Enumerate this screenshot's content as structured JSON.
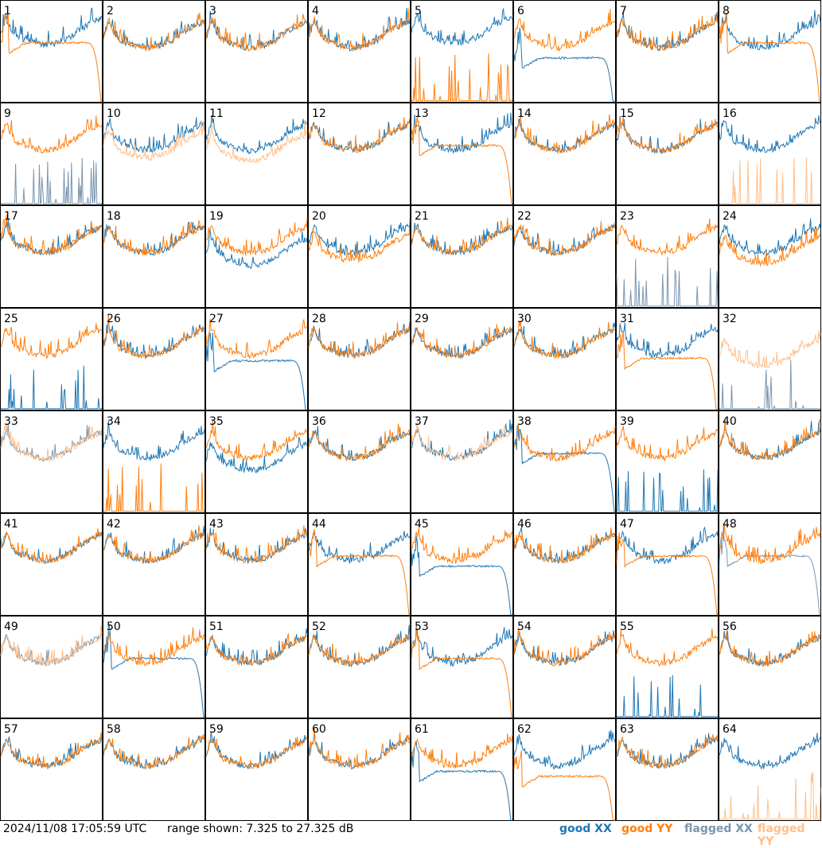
{
  "chart_data": {
    "type": "line",
    "timestamp": "2024/11/08 17:05:59 UTC",
    "range_text": "range shown: 7.325 to 27.325 dB",
    "ylim": [
      7.325,
      27.325
    ],
    "ylabel_unit": "dB",
    "grid": {
      "rows": 8,
      "cols": 8
    },
    "colors": {
      "good_xx": "#1f77b4",
      "good_yy": "#ff7f0e",
      "flagged_xx": "#7a96b0",
      "flagged_yy": "#ffbf8a"
    },
    "legend": [
      {
        "key": "good_xx",
        "label": "good XX"
      },
      {
        "key": "good_yy",
        "label": "good YY"
      },
      {
        "key": "flagged_xx",
        "label": "flagged XX"
      },
      {
        "key": "flagged_yy",
        "label": "flagged YY"
      }
    ],
    "base_profile_db": [
      20.0,
      23.5,
      21.0,
      19.6,
      19.2,
      18.8,
      18.4,
      18.2,
      18.0,
      18.1,
      18.3,
      18.6,
      19.0,
      19.5,
      20.3,
      21.2,
      21.8,
      22.3,
      22.8,
      23.3
    ],
    "panels": [
      {
        "label": "1",
        "xx": "good",
        "yy": "good",
        "xx_shape": "normal",
        "yy_shape": "rolloff",
        "xx_offset": 0.6,
        "yy_offset": 0
      },
      {
        "label": "2",
        "xx": "good",
        "yy": "good",
        "xx_shape": "normal",
        "yy_shape": "normal"
      },
      {
        "label": "3",
        "xx": "good",
        "yy": "good",
        "xx_shape": "normal",
        "yy_shape": "normal"
      },
      {
        "label": "4",
        "xx": "good",
        "yy": "good",
        "xx_shape": "normal",
        "yy_shape": "normal"
      },
      {
        "label": "5",
        "xx": "good",
        "yy": "good",
        "xx_shape": "normal",
        "yy_shape": "spikes",
        "xx_offset": 1.0
      },
      {
        "label": "6",
        "xx": "good",
        "yy": "good",
        "xx_shape": "rolloff",
        "yy_shape": "normal",
        "xx_offset": -3.0
      },
      {
        "label": "7",
        "xx": "good",
        "yy": "good",
        "xx_shape": "normal",
        "yy_shape": "normal"
      },
      {
        "label": "8",
        "xx": "good",
        "yy": "good",
        "xx_shape": "normal",
        "yy_shape": "rolloff"
      },
      {
        "label": "9",
        "xx": "flagged",
        "yy": "good",
        "xx_shape": "spikes",
        "yy_shape": "normal"
      },
      {
        "label": "10",
        "xx": "good",
        "yy": "flagged",
        "xx_shape": "normal",
        "yy_shape": "normal",
        "yy_offset": -1.5
      },
      {
        "label": "11",
        "xx": "good",
        "yy": "flagged",
        "xx_shape": "normal",
        "yy_shape": "normal",
        "yy_offset": -2.0
      },
      {
        "label": "12",
        "xx": "good",
        "yy": "good",
        "xx_shape": "normal",
        "yy_shape": "normal"
      },
      {
        "label": "13",
        "xx": "good",
        "yy": "good",
        "xx_shape": "normal",
        "yy_shape": "rolloff"
      },
      {
        "label": "14",
        "xx": "good",
        "yy": "good",
        "xx_shape": "normal",
        "yy_shape": "normal"
      },
      {
        "label": "15",
        "xx": "good",
        "yy": "good",
        "xx_shape": "normal",
        "yy_shape": "normal"
      },
      {
        "label": "16",
        "xx": "good",
        "yy": "flagged",
        "xx_shape": "normal",
        "yy_shape": "spikes"
      },
      {
        "label": "17",
        "xx": "good",
        "yy": "good",
        "xx_shape": "normal",
        "yy_shape": "normal"
      },
      {
        "label": "18",
        "xx": "good",
        "yy": "good",
        "xx_shape": "normal",
        "yy_shape": "normal"
      },
      {
        "label": "19",
        "xx": "good",
        "yy": "good",
        "xx_shape": "normal",
        "yy_shape": "normal",
        "xx_offset": -2.5
      },
      {
        "label": "20",
        "xx": "good",
        "yy": "good",
        "xx_shape": "normal",
        "yy_shape": "normal",
        "yy_offset": -1.5
      },
      {
        "label": "21",
        "xx": "good",
        "yy": "good",
        "xx_shape": "normal",
        "yy_shape": "normal"
      },
      {
        "label": "22",
        "xx": "good",
        "yy": "good",
        "xx_shape": "normal",
        "yy_shape": "normal"
      },
      {
        "label": "23",
        "xx": "flagged",
        "yy": "good",
        "xx_shape": "spikes",
        "yy_shape": "normal"
      },
      {
        "label": "24",
        "xx": "good",
        "yy": "good",
        "xx_shape": "normal",
        "yy_shape": "normal",
        "yy_offset": -2.0
      },
      {
        "label": "25",
        "xx": "good",
        "yy": "good",
        "xx_shape": "spikes",
        "yy_shape": "normal"
      },
      {
        "label": "26",
        "xx": "good",
        "yy": "good",
        "xx_shape": "normal",
        "yy_shape": "normal"
      },
      {
        "label": "27",
        "xx": "good",
        "yy": "good",
        "xx_shape": "rolloff",
        "yy_shape": "normal",
        "xx_offset": -2.0
      },
      {
        "label": "28",
        "xx": "good",
        "yy": "good",
        "xx_shape": "normal",
        "yy_shape": "normal"
      },
      {
        "label": "29",
        "xx": "good",
        "yy": "good",
        "xx_shape": "normal",
        "yy_shape": "normal"
      },
      {
        "label": "30",
        "xx": "good",
        "yy": "good",
        "xx_shape": "normal",
        "yy_shape": "normal"
      },
      {
        "label": "31",
        "xx": "good",
        "yy": "good",
        "xx_shape": "normal",
        "yy_shape": "rolloff",
        "yy_offset": -1.5
      },
      {
        "label": "32",
        "xx": "flagged",
        "yy": "flagged",
        "xx_shape": "spikes",
        "yy_shape": "normal",
        "yy_offset": -2.0
      },
      {
        "label": "33",
        "xx": "flagged",
        "yy": "flagged",
        "xx_shape": "normal",
        "yy_shape": "normal"
      },
      {
        "label": "34",
        "xx": "good",
        "yy": "good",
        "xx_shape": "normal",
        "yy_shape": "spikes"
      },
      {
        "label": "35",
        "xx": "good",
        "yy": "good",
        "xx_shape": "normal",
        "yy_shape": "normal",
        "xx_offset": -2.5
      },
      {
        "label": "36",
        "xx": "good",
        "yy": "good",
        "xx_shape": "normal",
        "yy_shape": "normal"
      },
      {
        "label": "37",
        "xx": "good",
        "yy": "flagged",
        "xx_shape": "normal",
        "yy_shape": "normal"
      },
      {
        "label": "38",
        "xx": "good",
        "yy": "good",
        "xx_shape": "rolloff",
        "yy_shape": "normal"
      },
      {
        "label": "39",
        "xx": "good",
        "yy": "good",
        "xx_shape": "spikes",
        "yy_shape": "normal"
      },
      {
        "label": "40",
        "xx": "good",
        "yy": "good",
        "xx_shape": "normal",
        "yy_shape": "normal"
      },
      {
        "label": "41",
        "xx": "good",
        "yy": "good",
        "xx_shape": "normal",
        "yy_shape": "normal"
      },
      {
        "label": "42",
        "xx": "good",
        "yy": "good",
        "xx_shape": "normal",
        "yy_shape": "normal"
      },
      {
        "label": "43",
        "xx": "good",
        "yy": "good",
        "xx_shape": "normal",
        "yy_shape": "normal"
      },
      {
        "label": "44",
        "xx": "good",
        "yy": "good",
        "xx_shape": "normal",
        "yy_shape": "rolloff"
      },
      {
        "label": "45",
        "xx": "good",
        "yy": "good",
        "xx_shape": "rolloff",
        "yy_shape": "normal",
        "xx_offset": -2.0
      },
      {
        "label": "46",
        "xx": "good",
        "yy": "good",
        "xx_shape": "normal",
        "yy_shape": "normal"
      },
      {
        "label": "47",
        "xx": "good",
        "yy": "good",
        "xx_shape": "normal",
        "yy_shape": "rolloff"
      },
      {
        "label": "48",
        "xx": "flagged",
        "yy": "good",
        "xx_shape": "rolloff",
        "yy_shape": "normal"
      },
      {
        "label": "49",
        "xx": "flagged",
        "yy": "flagged",
        "xx_shape": "normal",
        "yy_shape": "normal"
      },
      {
        "label": "50",
        "xx": "good",
        "yy": "good",
        "xx_shape": "rolloff",
        "yy_shape": "normal"
      },
      {
        "label": "51",
        "xx": "good",
        "yy": "good",
        "xx_shape": "normal",
        "yy_shape": "normal"
      },
      {
        "label": "52",
        "xx": "good",
        "yy": "good",
        "xx_shape": "normal",
        "yy_shape": "normal"
      },
      {
        "label": "53",
        "xx": "good",
        "yy": "good",
        "xx_shape": "normal",
        "yy_shape": "rolloff"
      },
      {
        "label": "54",
        "xx": "good",
        "yy": "good",
        "xx_shape": "normal",
        "yy_shape": "normal"
      },
      {
        "label": "55",
        "xx": "good",
        "yy": "good",
        "xx_shape": "spikes",
        "yy_shape": "normal"
      },
      {
        "label": "56",
        "xx": "good",
        "yy": "good",
        "xx_shape": "normal",
        "yy_shape": "normal"
      },
      {
        "label": "57",
        "xx": "good",
        "yy": "good",
        "xx_shape": "normal",
        "yy_shape": "normal"
      },
      {
        "label": "58",
        "xx": "good",
        "yy": "good",
        "xx_shape": "normal",
        "yy_shape": "normal"
      },
      {
        "label": "59",
        "xx": "good",
        "yy": "good",
        "xx_shape": "normal",
        "yy_shape": "normal"
      },
      {
        "label": "60",
        "xx": "good",
        "yy": "good",
        "xx_shape": "normal",
        "yy_shape": "normal"
      },
      {
        "label": "61",
        "xx": "good",
        "yy": "good",
        "xx_shape": "rolloff",
        "yy_shape": "normal",
        "xx_offset": -2.0
      },
      {
        "label": "62",
        "xx": "good",
        "yy": "good",
        "xx_shape": "normal",
        "yy_shape": "rolloff",
        "yy_offset": -3.0
      },
      {
        "label": "63",
        "xx": "good",
        "yy": "good",
        "xx_shape": "normal",
        "yy_shape": "normal"
      },
      {
        "label": "64",
        "xx": "good",
        "yy": "flagged",
        "xx_shape": "normal",
        "yy_shape": "spikes"
      }
    ]
  }
}
